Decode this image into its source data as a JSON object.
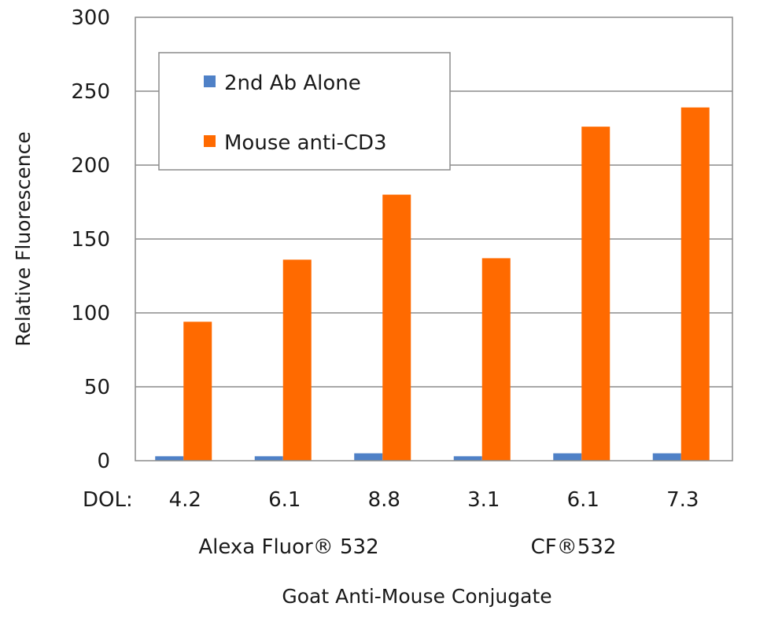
{
  "chart_data": {
    "type": "bar",
    "title": "",
    "ylabel": "Relative Fluorescence",
    "xlabel": "Goat Anti-Mouse Conjugate",
    "ylim": [
      0,
      300
    ],
    "yticks": [
      0,
      50,
      100,
      150,
      200,
      250,
      300
    ],
    "grid": true,
    "dol_label": "DOL:",
    "categories": [
      "4.2",
      "6.1",
      "8.8",
      "3.1",
      "6.1",
      "7.3"
    ],
    "groups": [
      {
        "label": "Alexa Fluor® 532",
        "categories": [
          "4.2",
          "6.1",
          "8.8"
        ]
      },
      {
        "label": "CF®532",
        "categories": [
          "3.1",
          "6.1",
          "7.3"
        ]
      }
    ],
    "series": [
      {
        "name": "2nd Ab Alone",
        "color": "#4f81c7",
        "values": [
          3,
          3,
          5,
          3,
          5,
          5
        ]
      },
      {
        "name": "Mouse anti-CD3",
        "color": "#ff6a00",
        "values": [
          94,
          136,
          180,
          137,
          226,
          239
        ]
      }
    ],
    "legend_position": "top-left"
  }
}
